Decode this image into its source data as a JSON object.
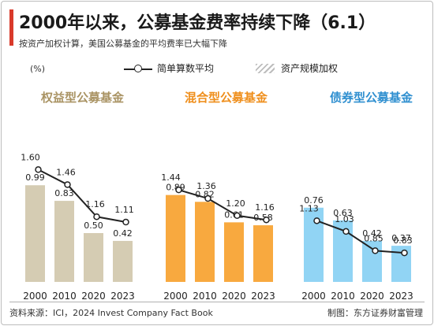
{
  "title": "2000年以来，公募基金费率持续下降（6.1）",
  "subtitle": "按资产加权计算，美国公募基金的平均费率已大幅下降",
  "unit_label": "(%)",
  "legend": {
    "line_label": "简单算数平均",
    "bar_label": "资产规模加权"
  },
  "footer": {
    "source": "资料来源：ICI，2024 Invest Company Fact Book",
    "credit": "制图：东方证券财富管理"
  },
  "colors": {
    "equity": "#d5ccb3",
    "equity_title": "#a99363",
    "hybrid": "#f8a93f",
    "hybrid_title": "#ef8f1d",
    "bond": "#91d4f4",
    "bond_title": "#2f8fd0",
    "line": "#222222",
    "accent": "#d93a2b"
  },
  "chart_data": [
    {
      "type": "bar",
      "title": "权益型公募基金",
      "categories": [
        "2000",
        "2010",
        "2020",
        "2023"
      ],
      "series": [
        {
          "name": "资产规模加权",
          "values": [
            0.99,
            0.83,
            0.5,
            0.42
          ]
        },
        {
          "name": "简单算数平均",
          "values": [
            1.6,
            1.46,
            1.16,
            1.11
          ]
        }
      ]
    },
    {
      "type": "bar",
      "title": "混合型公募基金",
      "categories": [
        "2000",
        "2010",
        "2020",
        "2023"
      ],
      "series": [
        {
          "name": "资产规模加权",
          "values": [
            0.89,
            0.82,
            0.61,
            0.58
          ]
        },
        {
          "name": "简单算数平均",
          "values": [
            1.44,
            1.36,
            1.2,
            1.16
          ]
        }
      ]
    },
    {
      "type": "bar",
      "title": "债券型公募基金",
      "categories": [
        "2000",
        "2010",
        "2020",
        "2023"
      ],
      "series": [
        {
          "name": "资产规模加权",
          "values": [
            0.76,
            0.63,
            0.42,
            0.37
          ]
        },
        {
          "name": "简单算数平均",
          "values": [
            1.13,
            1.03,
            0.85,
            0.83
          ]
        }
      ]
    }
  ]
}
